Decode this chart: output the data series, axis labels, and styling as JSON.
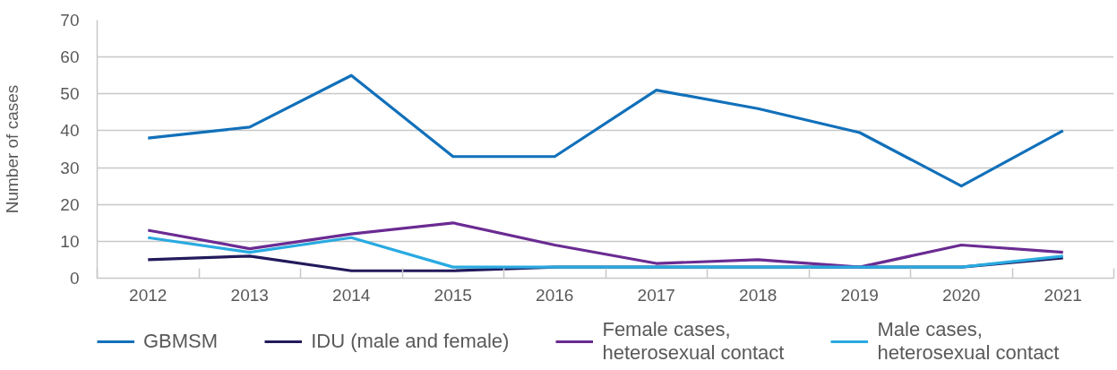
{
  "chart_data": {
    "type": "line",
    "ylabel": "Number of cases",
    "categories": [
      "2012",
      "2013",
      "2014",
      "2015",
      "2016",
      "2017",
      "2018",
      "2019",
      "2020",
      "2021"
    ],
    "ylim": [
      0,
      70
    ],
    "yticks": [
      0,
      10,
      20,
      30,
      40,
      50,
      60,
      70
    ],
    "grid": "y",
    "legend": "bottom",
    "line_style": "solid",
    "series": [
      {
        "name": "GBMSM",
        "color": "#1170ba",
        "values": [
          38,
          41,
          55,
          33,
          33,
          51,
          46,
          39.5,
          25,
          40
        ]
      },
      {
        "name": "IDU (male and female)",
        "color": "#221a5c",
        "values": [
          5,
          6,
          2,
          2,
          3,
          3,
          3,
          3,
          3,
          5.5
        ]
      },
      {
        "name": "Female cases, heterosexual contact",
        "color": "#6a2b92",
        "values": [
          13,
          8,
          12,
          15,
          9,
          4,
          5,
          3,
          9,
          7
        ]
      },
      {
        "name": "Male cases, heterosexual contact",
        "color": "#29aae1",
        "values": [
          11,
          7,
          11,
          3,
          3,
          3,
          3,
          3,
          3,
          6
        ]
      }
    ]
  }
}
